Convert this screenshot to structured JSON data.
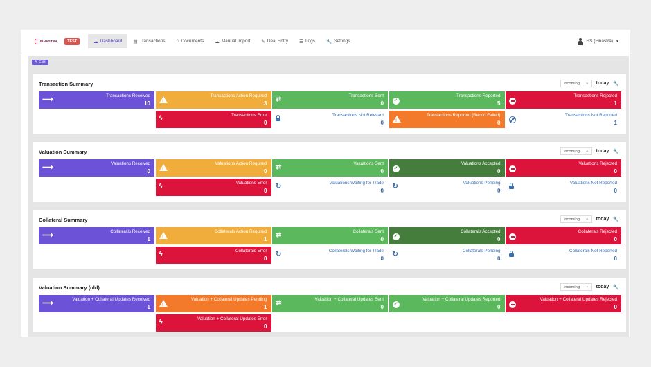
{
  "nav": {
    "logo_text": "FINASTRA",
    "env_badge": "TEST",
    "items": [
      {
        "label": "Dashboard",
        "icon": "dashboard-icon",
        "glyph": "☁"
      },
      {
        "label": "Transactions",
        "icon": "list-icon",
        "glyph": "▤"
      },
      {
        "label": "Documents",
        "icon": "inbox-icon",
        "glyph": "⌂"
      },
      {
        "label": "Manual Import",
        "icon": "cloud-upload-icon",
        "glyph": "☁"
      },
      {
        "label": "Deal Entry",
        "icon": "edit-icon",
        "glyph": "✎"
      },
      {
        "label": "Logs",
        "icon": "list-icon",
        "glyph": "☰"
      },
      {
        "label": "Settings",
        "icon": "wrench-icon",
        "glyph": "🔧"
      }
    ],
    "user": "HS (Finastra)"
  },
  "edit_label": "Edit",
  "colors": {
    "purple": "#6b52d6",
    "yellow": "#f0ad3c",
    "green": "#5cb85c",
    "dark_green": "#457d3d",
    "red": "#dc143c",
    "orange": "#f27a2a",
    "link_blue": "#3a6fb0"
  },
  "panels": [
    {
      "title": "Transaction Summary",
      "direction": "Incoming",
      "range": "today",
      "row1": [
        {
          "label": "Transactions Received",
          "value": "10",
          "color": "purple",
          "icon": "arrow-right-icon"
        },
        {
          "label": "Transactions Action Required",
          "value": "3",
          "color": "yellow",
          "icon": "warning-icon"
        },
        {
          "label": "Transactions Sent",
          "value": "0",
          "color": "green",
          "icon": "exchange-icon"
        },
        {
          "label": "Transactions Reported",
          "value": "5",
          "color": "green",
          "icon": "check-circle-icon"
        },
        {
          "label": "Transactions Rejected",
          "value": "1",
          "color": "red",
          "icon": "minus-circle-icon"
        }
      ],
      "row2": [
        {
          "label": "Transactions Error",
          "value": "0",
          "color": "red",
          "icon": "bolt-icon"
        },
        {
          "label": "Transactions Not Relevant",
          "value": "0",
          "color": "plain",
          "icon": "lock-icon"
        },
        {
          "label": "Transactions Reported (Recon Failed)",
          "value": "0",
          "color": "orange",
          "icon": "warning-icon"
        },
        {
          "label": "Transactions Not Reported",
          "value": "1",
          "color": "plain",
          "icon": "ban-icon"
        }
      ]
    },
    {
      "title": "Valuation Summary",
      "direction": "Incoming",
      "range": "today",
      "row1": [
        {
          "label": "Valuations Received",
          "value": "0",
          "color": "purple",
          "icon": "arrow-right-icon"
        },
        {
          "label": "Valuations Action Required",
          "value": "0",
          "color": "yellow",
          "icon": "warning-icon"
        },
        {
          "label": "Valuations Sent",
          "value": "0",
          "color": "green",
          "icon": "exchange-icon"
        },
        {
          "label": "Valuations Accepted",
          "value": "0",
          "color": "dark_green",
          "icon": "check-circle-icon"
        },
        {
          "label": "Valuations Rejected",
          "value": "0",
          "color": "red",
          "icon": "minus-circle-icon"
        }
      ],
      "row2": [
        {
          "label": "Valuations Error",
          "value": "0",
          "color": "red",
          "icon": "bolt-icon"
        },
        {
          "label": "Valuations Waiting for Trade",
          "value": "0",
          "color": "plain",
          "icon": "refresh-icon"
        },
        {
          "label": "Valuations Pending",
          "value": "0",
          "color": "plain",
          "icon": "refresh-icon"
        },
        {
          "label": "Valuations Not Reported",
          "value": "0",
          "color": "plain",
          "icon": "lock-icon"
        }
      ]
    },
    {
      "title": "Collateral Summary",
      "direction": "Incoming",
      "range": "today",
      "row1": [
        {
          "label": "Collaterals Received",
          "value": "1",
          "color": "purple",
          "icon": "arrow-right-icon"
        },
        {
          "label": "Collaterals Action Required",
          "value": "1",
          "color": "yellow",
          "icon": "warning-icon"
        },
        {
          "label": "Collaterals Sent",
          "value": "0",
          "color": "green",
          "icon": "exchange-icon"
        },
        {
          "label": "Collaterals Accepted",
          "value": "0",
          "color": "dark_green",
          "icon": "check-circle-icon"
        },
        {
          "label": "Collaterals Rejected",
          "value": "0",
          "color": "red",
          "icon": "minus-circle-icon"
        }
      ],
      "row2": [
        {
          "label": "Collaterals Error",
          "value": "0",
          "color": "red",
          "icon": "bolt-icon"
        },
        {
          "label": "Collaterals Waiting for Trade",
          "value": "0",
          "color": "plain",
          "icon": "refresh-icon"
        },
        {
          "label": "Collaterals Pending",
          "value": "0",
          "color": "plain",
          "icon": "refresh-icon"
        },
        {
          "label": "Collaterals Not Reported",
          "value": "0",
          "color": "plain",
          "icon": "lock-icon"
        }
      ]
    },
    {
      "title": "Valuation Summary (old)",
      "direction": "Incoming",
      "range": "today",
      "row1": [
        {
          "label": "Valuation + Collateral Updates Received",
          "value": "1",
          "color": "purple",
          "icon": "arrow-right-icon"
        },
        {
          "label": "Valuation + Collateral Updates Pending",
          "value": "1",
          "color": "orange",
          "icon": "warning-icon"
        },
        {
          "label": "Valuation + Collateral Updates Sent",
          "value": "0",
          "color": "green",
          "icon": "exchange-icon"
        },
        {
          "label": "Valuation + Collateral Updates Reported",
          "value": "0",
          "color": "green",
          "icon": "check-circle-icon"
        },
        {
          "label": "Valuation + Collateral Updates Rejected",
          "value": "0",
          "color": "red",
          "icon": "minus-circle-icon"
        }
      ],
      "row2": [
        {
          "label": "Valuation + Collateral Updates Error",
          "value": "0",
          "color": "red",
          "icon": "bolt-icon"
        }
      ]
    }
  ]
}
